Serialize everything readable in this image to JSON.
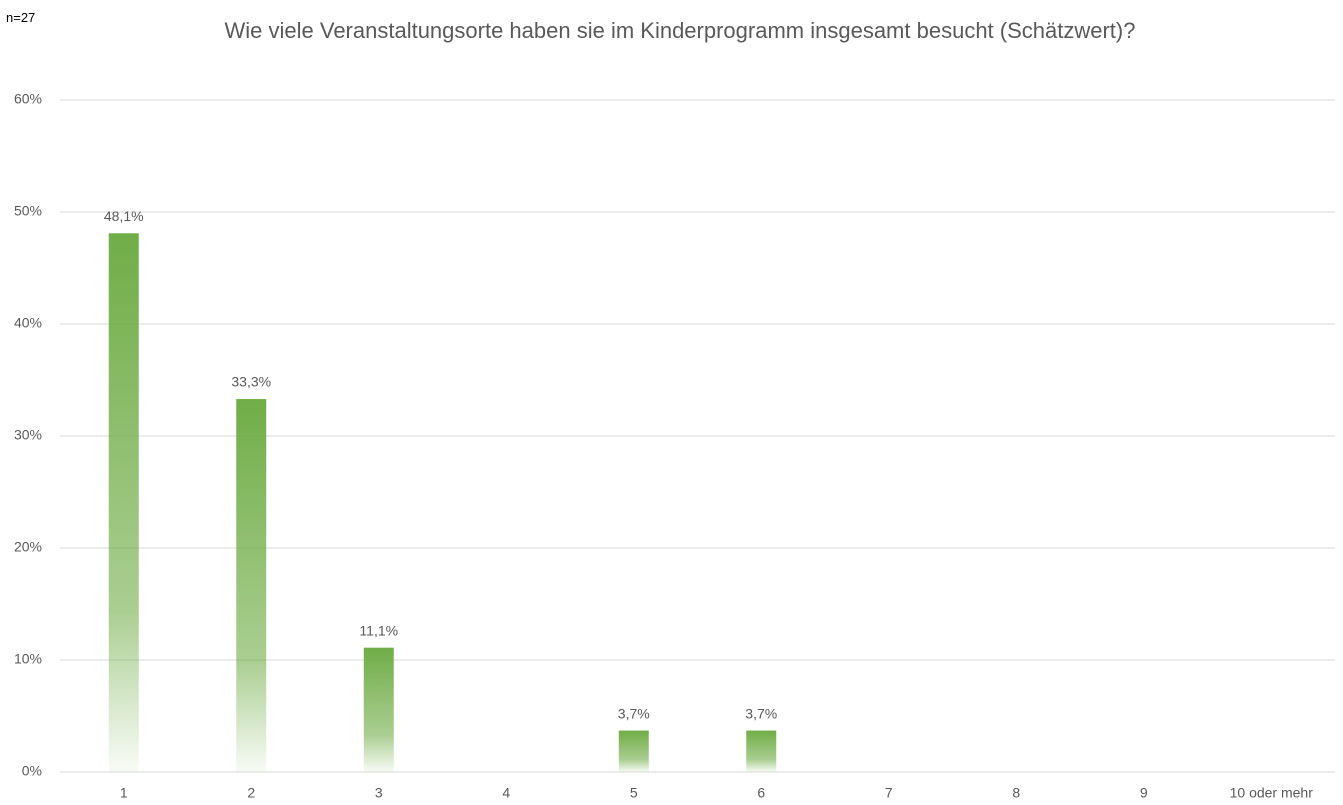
{
  "chart_data": {
    "type": "bar",
    "title": "Wie viele Veranstaltungsorte haben sie im Kinderprogramm insgesamt besucht (Schätzwert)?",
    "annotation": "n=27",
    "categories": [
      "1",
      "2",
      "3",
      "4",
      "5",
      "6",
      "7",
      "8",
      "9",
      "10 oder mehr"
    ],
    "values": [
      48.1,
      33.3,
      11.1,
      0,
      3.7,
      3.7,
      0,
      0,
      0,
      0
    ],
    "value_labels": [
      "48,1%",
      "33,3%",
      "11,1%",
      null,
      "3,7%",
      "3,7%",
      null,
      null,
      null,
      null
    ],
    "color": "#70ad47",
    "ylim": [
      0,
      60
    ],
    "yticks": [
      {
        "value": 0,
        "label": "0%"
      },
      {
        "value": 10,
        "label": "10%"
      },
      {
        "value": 20,
        "label": "20%"
      },
      {
        "value": 30,
        "label": "30%"
      },
      {
        "value": 40,
        "label": "40%"
      },
      {
        "value": 50,
        "label": "50%"
      },
      {
        "value": 60,
        "label": "60%"
      }
    ],
    "grid": true
  }
}
